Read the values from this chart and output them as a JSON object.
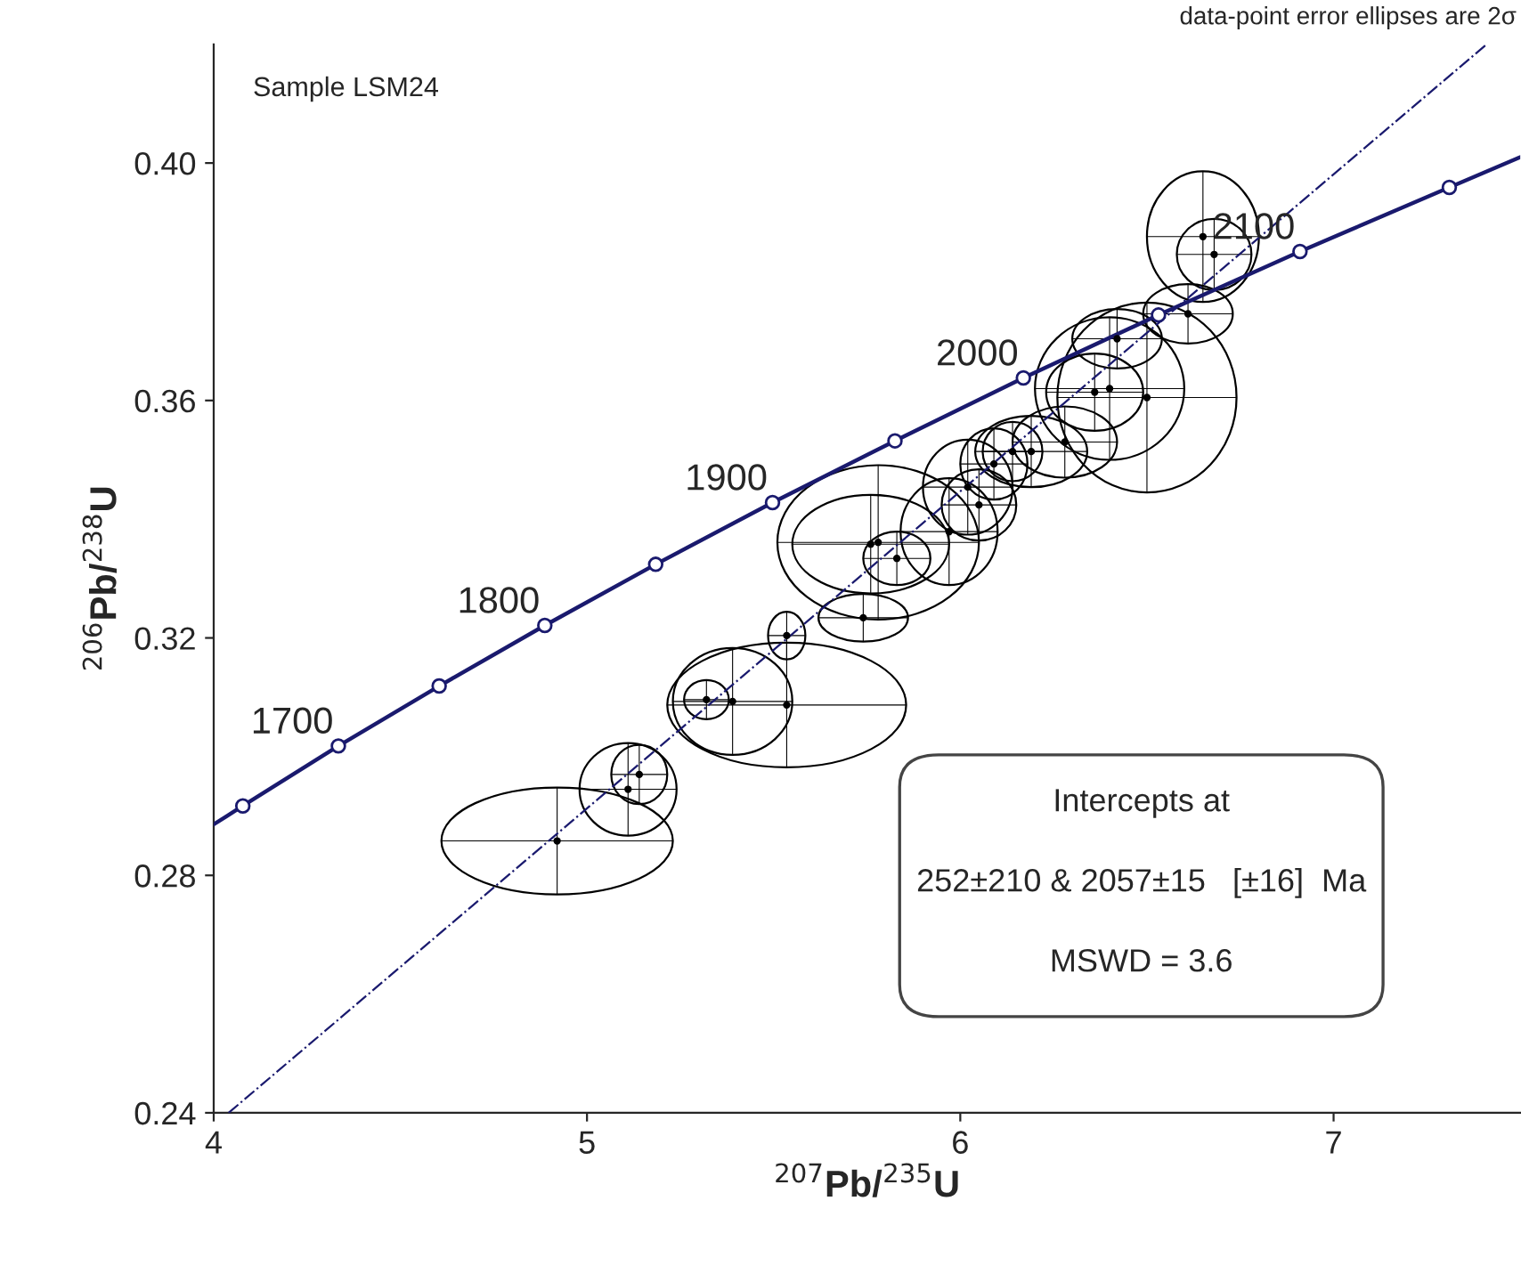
{
  "chart_data": {
    "type": "scatter",
    "xlabel": "$^{207}$Pb/$^{235}$U",
    "ylabel": "$^{206}$Pb/$^{238}$U",
    "xlim": [
      4,
      7.5
    ],
    "ylim": [
      0.24,
      0.42
    ],
    "xticks": [
      4,
      5,
      6,
      7
    ],
    "yticks": [
      0.24,
      0.28,
      0.32,
      0.36,
      {
        "value": 0.4,
        "label": "0.40"
      }
    ],
    "grid": false,
    "legend": false,
    "series": [
      {
        "type": "line",
        "color": "#1a1a6e",
        "marker": "none",
        "line_style": "solid",
        "x": [
          4.0,
          4.078,
          4.334,
          4.604,
          4.887,
          5.184,
          5.497,
          5.825,
          6.169,
          6.531,
          6.91,
          7.31,
          7.5
        ],
        "values": [
          0.2886,
          0.2917,
          0.3018,
          0.3119,
          0.3221,
          0.3324,
          0.3428,
          0.3532,
          0.3638,
          0.3744,
          0.3851,
          0.3959,
          0.401
        ]
      },
      {
        "type": "scatter",
        "color": "#1a1a6e",
        "marker": "circle",
        "x": [
          4.078,
          4.334,
          4.604,
          4.887,
          5.184,
          5.497,
          5.825,
          6.169,
          6.531,
          6.91,
          7.31
        ],
        "values": [
          0.2917,
          0.3018,
          0.3119,
          0.3221,
          0.3324,
          0.3428,
          0.3532,
          0.3638,
          0.3744,
          0.3851,
          0.3959
        ]
      },
      {
        "type": "line",
        "color": "#1a1a6e",
        "marker": "none",
        "line_style": "dashdot",
        "x": [
          4.04,
          7.41
        ],
        "values": [
          0.24,
          0.42
        ]
      },
      {
        "color": "#000000",
        "marker": "circle",
        "x": [
          4.92,
          5.11,
          5.14,
          5.535,
          5.39,
          5.32,
          5.535,
          5.74,
          5.78,
          5.76,
          5.83,
          5.97,
          6.02,
          6.09,
          6.14,
          6.19,
          6.05,
          6.28,
          6.4,
          6.36,
          6.5,
          6.42,
          6.61,
          6.65,
          6.68
        ],
        "values": [
          0.2858,
          0.2945,
          0.297,
          0.3087,
          0.3093,
          0.3096,
          0.3204,
          0.3234,
          0.3361,
          0.3358,
          0.3334,
          0.3379,
          0.3454,
          0.3493,
          0.3514,
          0.3514,
          0.3424,
          0.353,
          0.362,
          0.3614,
          0.3605,
          0.3704,
          0.3746,
          0.3876,
          0.3846
        ],
        "xerrors": [
          0.31,
          0.13,
          0.075,
          0.32,
          0.16,
          0.06,
          0.05,
          0.12,
          0.27,
          0.21,
          0.09,
          0.13,
          0.12,
          0.09,
          0.08,
          0.15,
          0.1,
          0.14,
          0.2,
          0.13,
          0.24,
          0.12,
          0.12,
          0.15,
          0.1
        ],
        "errors": [
          0.009,
          0.0078,
          0.005,
          0.0105,
          0.009,
          0.0033,
          0.004,
          0.004,
          0.013,
          0.0083,
          0.0045,
          0.009,
          0.008,
          0.006,
          0.005,
          0.006,
          0.006,
          0.006,
          0.012,
          0.0065,
          0.016,
          0.005,
          0.005,
          0.011,
          0.006
        ]
      }
    ],
    "annotations": [
      "Sample LSM24",
      "data-point error ellipses are 2σ",
      "Intercepts at",
      "252±210 & 2057±15   [±16]  Ma",
      "MSWD = 3.6",
      {
        "text": "1700",
        "x": 4.334,
        "y": 0.3018
      },
      {
        "text": "1800",
        "x": 4.887,
        "y": 0.3221
      },
      {
        "text": "1900",
        "x": 5.497,
        "y": 0.3428
      },
      {
        "text": "2000",
        "x": 6.169,
        "y": 0.3638
      },
      {
        "text": "2100",
        "x": 6.91,
        "y": 0.3851
      }
    ]
  }
}
